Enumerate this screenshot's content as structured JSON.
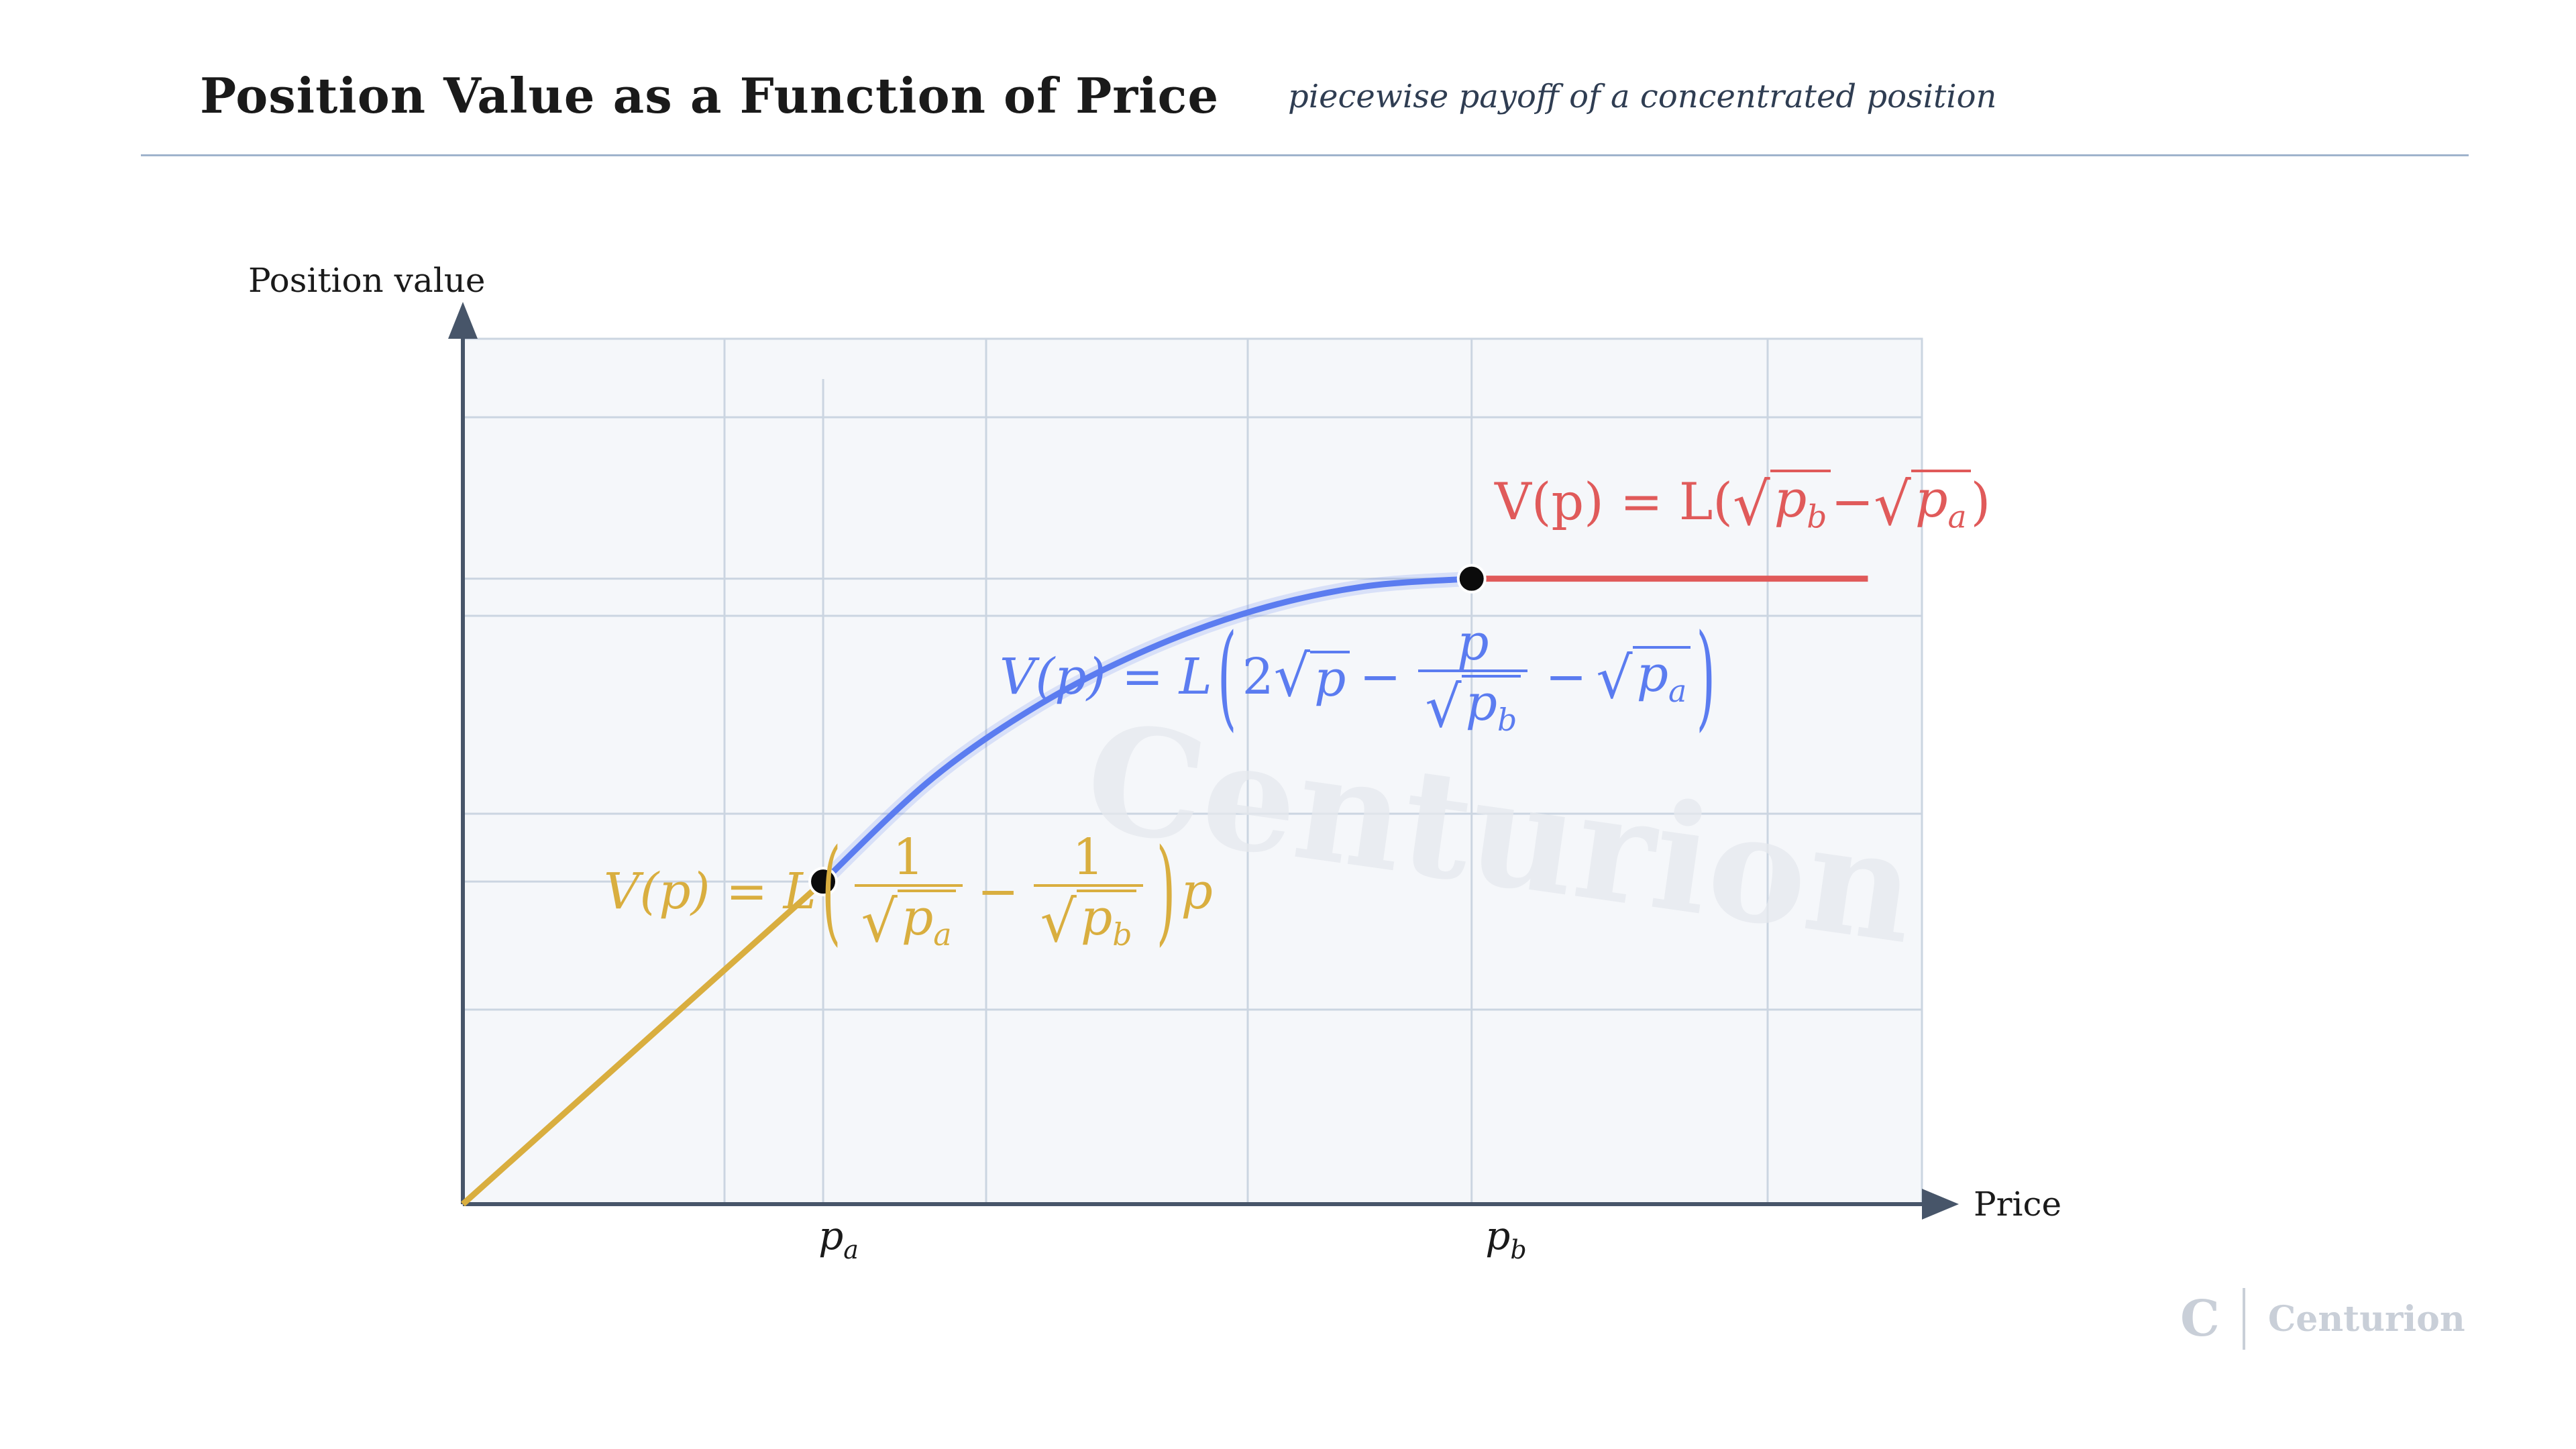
{
  "header": {
    "title": "Position Value as a Function of Price",
    "subtitle": "piecewise payoff of a concentrated position"
  },
  "chart_data": {
    "type": "line",
    "ylabel": "Position value",
    "xlabel": "Price",
    "x_ticks": [
      "p_a",
      "p_b"
    ],
    "xlim": [
      0,
      4.05
    ],
    "ylim": [
      0,
      2.2
    ],
    "pa": 1.0,
    "pb": 2.8,
    "series": [
      {
        "id": "left",
        "color": "#d9ae3f",
        "formula": "V(p) = L(1/√p_a − 1/√p_b) p",
        "x": [
          0.0,
          0.5,
          1.0
        ],
        "y": [
          0.0,
          0.41,
          0.82
        ]
      },
      {
        "id": "middle",
        "color": "#5b7cf0",
        "formula": "V(p) = L(2√p − p/√p_b − √p_a)",
        "x": [
          1.0,
          1.3,
          1.6,
          1.9,
          2.2,
          2.5,
          2.8
        ],
        "y": [
          0.82,
          1.08,
          1.27,
          1.41,
          1.51,
          1.57,
          1.59
        ]
      },
      {
        "id": "right",
        "color": "#e05a5a",
        "formula": "V(p) = L(√p_b − √p_a)",
        "x": [
          2.8,
          3.9
        ],
        "y": [
          1.59,
          1.59
        ]
      }
    ],
    "points": [
      {
        "x": 1.0,
        "y": 0.82
      },
      {
        "x": 2.8,
        "y": 1.59
      }
    ],
    "grid": true,
    "watermark": "Centurion"
  },
  "labels": {
    "ylabel": "Position value",
    "xlabel": "Price",
    "tick_p": "p",
    "tick_a": "a",
    "tick_b": "b"
  },
  "formulas": {
    "red": {
      "lhs": "V(p) = L(",
      "p": "p",
      "b": "b",
      "a": "a",
      "minus": " − ",
      "close": ")"
    },
    "blue": {
      "lhs": "V(p) = L",
      "two": "2",
      "p": "p",
      "minus": "−",
      "b": "b",
      "a": "a"
    },
    "gold": {
      "lhs": "V(p) = L",
      "one": "1",
      "p": "p",
      "a": "a",
      "b": "b",
      "minus": "−"
    }
  },
  "logo": {
    "mark": "C",
    "word": "Centurion"
  }
}
